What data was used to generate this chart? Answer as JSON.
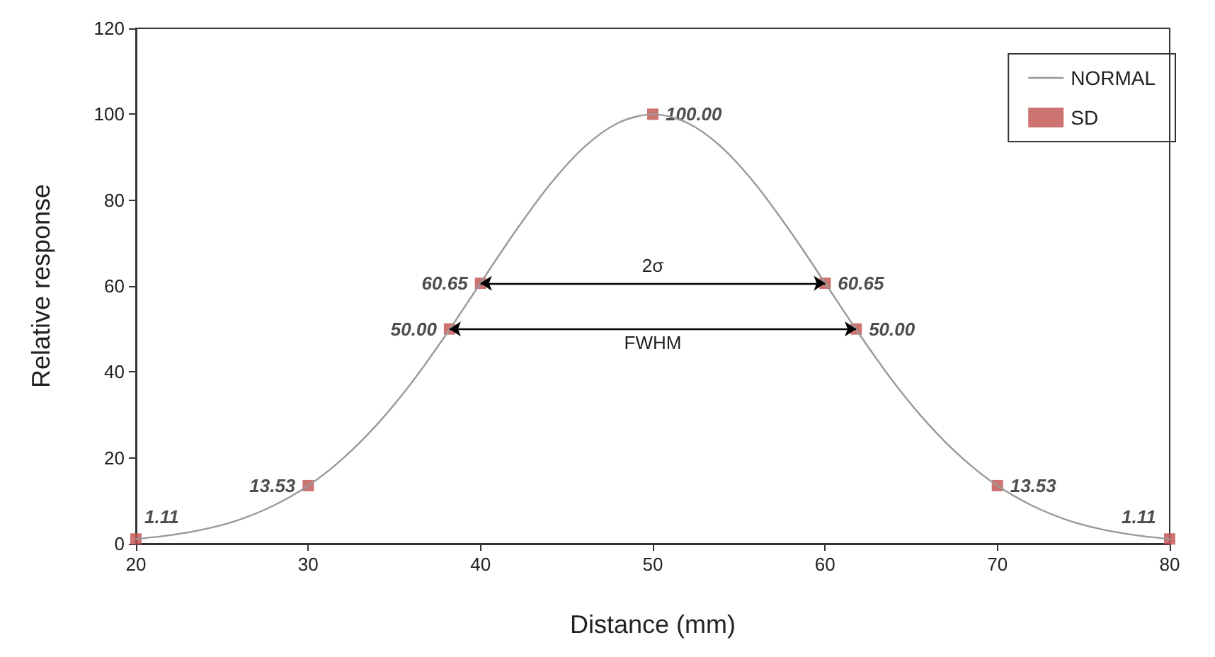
{
  "chart_data": {
    "type": "line",
    "xlabel": "Distance (mm)",
    "ylabel": "Relative response",
    "xlim": [
      20,
      80
    ],
    "xticks": [
      20,
      30,
      40,
      50,
      60,
      70,
      80
    ],
    "ylim": [
      0,
      120
    ],
    "yticks": [
      0,
      20,
      40,
      60,
      80,
      100,
      120
    ],
    "grid": false,
    "legend": "top right",
    "series": [
      {
        "name": "NORMAL",
        "color": "#999999",
        "marker": "none",
        "x": [
          20,
          22,
          24,
          26,
          28,
          30,
          32,
          34,
          36,
          38,
          40,
          42,
          44,
          46,
          48,
          50,
          52,
          54,
          56,
          58,
          60,
          62,
          64,
          66,
          68,
          70,
          72,
          74,
          76,
          78,
          80
        ],
        "values": [
          1.1,
          2,
          3.4,
          5.6,
          8.9,
          13.5,
          19.8,
          27.8,
          37.5,
          48.7,
          60.7,
          72.6,
          83.5,
          92.3,
          98,
          100,
          98,
          92.3,
          83.5,
          72.6,
          60.7,
          48.7,
          37.5,
          27.8,
          19.8,
          13.5,
          8.9,
          5.6,
          3.4,
          2,
          1.1
        ]
      },
      {
        "name": "SD",
        "type": "scatter",
        "color": "#c0504d",
        "marker": "square",
        "x": [
          20,
          30,
          38.2,
          40,
          50,
          60,
          61.8,
          70,
          80
        ],
        "values": [
          1.11,
          13.53,
          50,
          60.65,
          100,
          60.65,
          50,
          13.53,
          1.11
        ],
        "value_labels": [
          "1.11",
          "13.53",
          "50.00",
          "60.65",
          "100.00",
          "60.65",
          "50.00",
          "13.53",
          "1.11"
        ]
      }
    ],
    "annotations": [
      "2σ",
      "FWHM"
    ]
  }
}
